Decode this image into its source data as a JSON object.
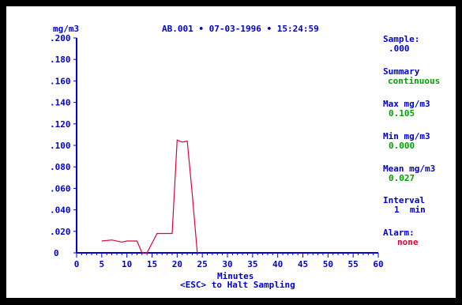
{
  "header": {
    "unit": "mg/m3",
    "sample_id": "AB.001",
    "sep1": "•",
    "date": "07-03-1996",
    "sep2": "•",
    "time": "15:24:59"
  },
  "side": {
    "sample_label": "Sample:",
    "sample_value": ".000",
    "summary_label": "Summary",
    "summary_value": "continuous",
    "max_label": "Max mg/m3",
    "max_value": "0.105",
    "min_label": "Min mg/m3",
    "min_value": "0.000",
    "mean_label": "Mean mg/m3",
    "mean_value": "0.027",
    "interval_label": "Interval",
    "interval_value": "1  min",
    "alarm_label": "Alarm:",
    "alarm_value": "none"
  },
  "footer": {
    "xlabel": "Minutes",
    "hint": "<ESC> to Halt Sampling"
  },
  "colors": {
    "axis": "#0000cc",
    "line": "#e0003c",
    "value_text": "#00a000",
    "alarm_text": "#e0003c"
  },
  "chart_data": {
    "type": "line",
    "xlabel": "Minutes",
    "ylabel": "mg/m3",
    "xlim": [
      0,
      60
    ],
    "ylim": [
      0,
      0.2
    ],
    "x_ticks": [
      "0",
      "5",
      "10",
      "15",
      "20",
      "25",
      "30",
      "35",
      "40",
      "45",
      "50",
      "55",
      "60"
    ],
    "y_ticks": [
      "0",
      ".020",
      ".040",
      ".060",
      ".080",
      ".100",
      ".120",
      ".140",
      ".160",
      ".180",
      ".200"
    ],
    "series": [
      {
        "x": [
          5,
          7,
          9,
          10,
          12,
          13,
          14,
          16,
          19,
          20,
          21,
          22,
          23,
          24
        ],
        "y": [
          0.011,
          0.012,
          0.01,
          0.011,
          0.011,
          0.0,
          0.0,
          0.018,
          0.018,
          0.105,
          0.103,
          0.104,
          0.055,
          0.0
        ]
      }
    ]
  }
}
